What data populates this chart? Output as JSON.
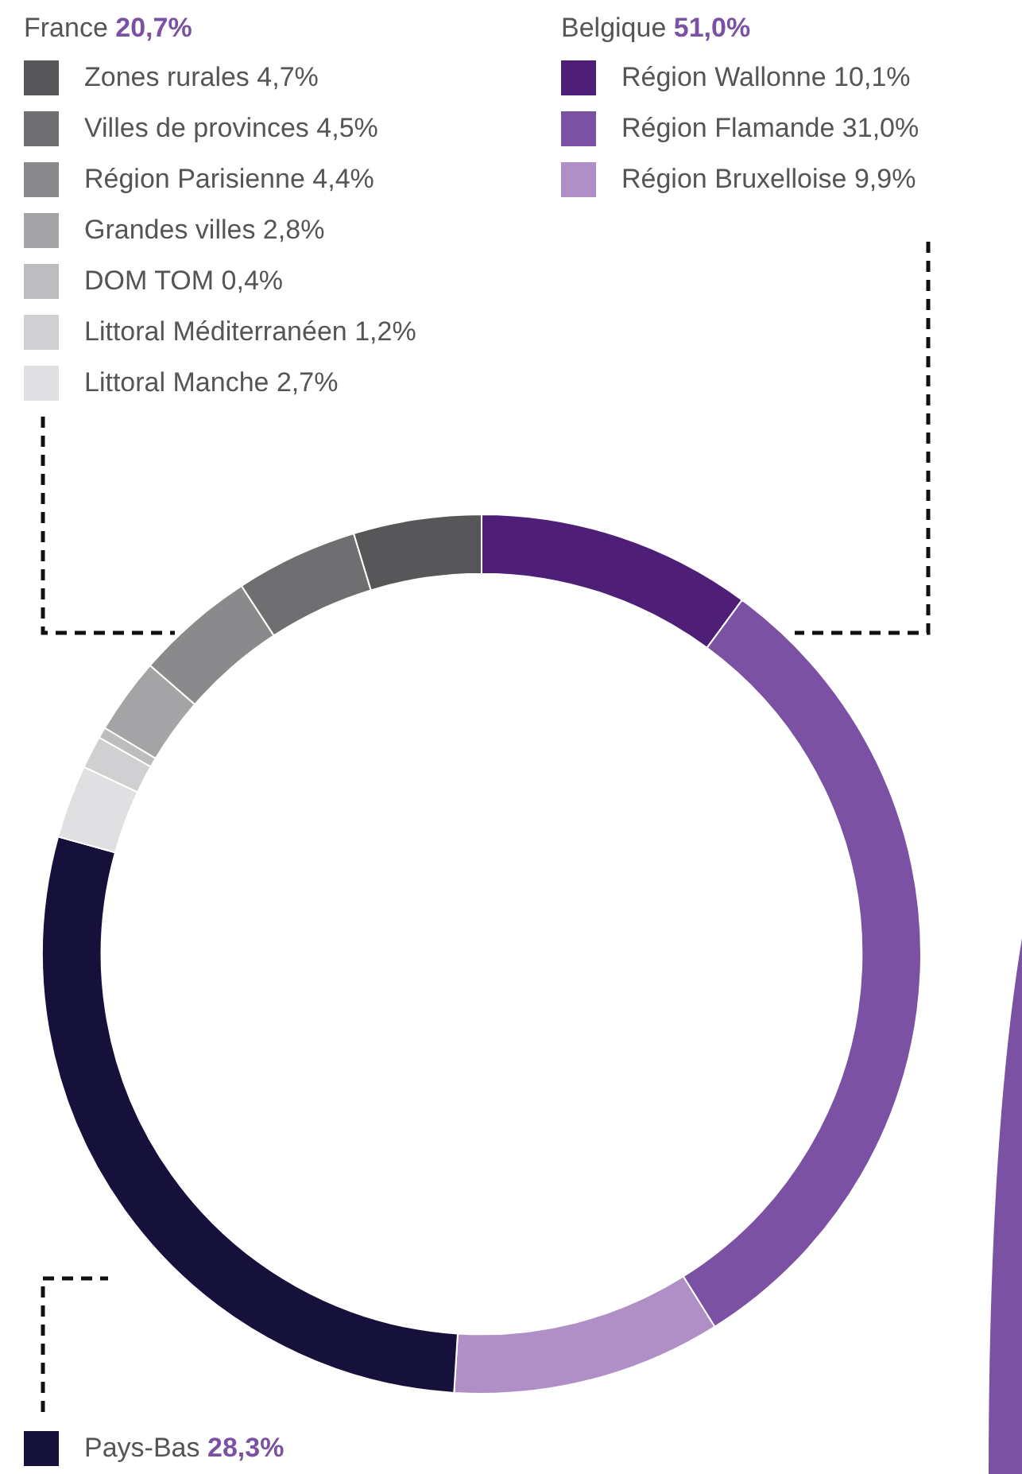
{
  "chart_data": {
    "type": "donut",
    "categories": [
      "Région Wallonne",
      "Région Flamande",
      "Région Bruxelloise",
      "Pays-Bas",
      "Littoral Manche",
      "Littoral Méditerranéen",
      "DOM TOM",
      "Grandes villes",
      "Région Parisienne",
      "Villes de provinces",
      "Zones rurales"
    ],
    "values": [
      10.1,
      31.0,
      9.9,
      28.3,
      2.7,
      1.2,
      0.4,
      2.8,
      4.4,
      4.5,
      4.7
    ],
    "value_labels": [
      "10,1%",
      "31,0%",
      "9,9%",
      "28,3%",
      "2,7%",
      "1,2%",
      "0,4%",
      "2,8%",
      "4,4%",
      "4,5%",
      "4,7%"
    ],
    "colors": [
      "#4f1f78",
      "#7b52a3",
      "#b08fc6",
      "#16113a",
      "#e0e0e2",
      "#d0d0d2",
      "#bdbdc0",
      "#a4a4a7",
      "#8a8a8d",
      "#6f6f72",
      "#575759"
    ],
    "annotations": [
      "France",
      "Belgique"
    ],
    "totals": [
      "20,7%",
      "51,0%"
    ],
    "legend": "top"
  }
}
